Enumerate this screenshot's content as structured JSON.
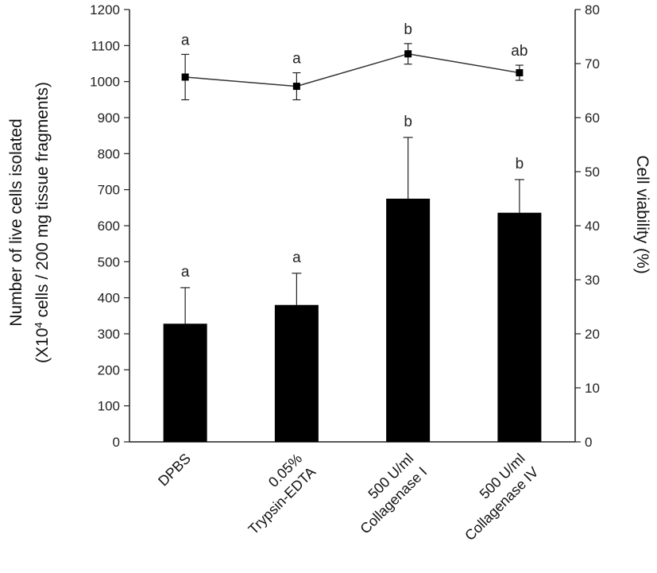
{
  "chart_data": {
    "type": "bar",
    "categories": [
      [
        "DPBS"
      ],
      [
        "0.05%",
        "Trypsin-EDTA"
      ],
      [
        "500 U/ml",
        "Collagenase I"
      ],
      [
        "500 U/ml",
        "Collagenase IV"
      ]
    ],
    "bars": {
      "values": [
        328,
        380,
        675,
        636
      ],
      "error_plus": [
        100,
        88,
        170,
        92
      ],
      "letters": [
        "a",
        "a",
        "b",
        "b"
      ]
    },
    "line": {
      "values": [
        67.5,
        65.8,
        71.8,
        68.3
      ],
      "error": [
        4.2,
        2.5,
        1.9,
        1.4
      ],
      "letters": [
        "a",
        "a",
        "b",
        "ab"
      ]
    },
    "left_axis": {
      "label_line1": "Number of live cells isolated",
      "label_line2_prefix": "(X10",
      "label_line2_sup": "4",
      "label_line2_suffix": " cells / 200 mg tissue fragments)",
      "ylim": [
        0,
        1200
      ],
      "ticks": [
        "0",
        "100",
        "200",
        "300",
        "400",
        "500",
        "600",
        "700",
        "800",
        "900",
        "1000",
        "1100",
        "1200"
      ]
    },
    "right_axis": {
      "label": "Cell viability (%)",
      "ylim": [
        0,
        80
      ],
      "ticks": [
        "0",
        "10",
        "20",
        "30",
        "40",
        "50",
        "60",
        "70",
        "80"
      ]
    },
    "colors": {
      "bar": "#000000",
      "line": "#333333",
      "marker": "#000000",
      "axis": "#222222"
    }
  }
}
